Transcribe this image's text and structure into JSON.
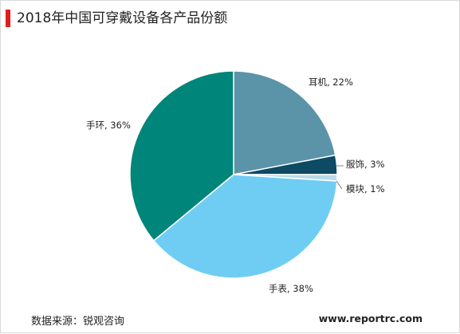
{
  "chart_data": {
    "type": "pie",
    "title": "2018年中国可穿戴设备各产品份额",
    "slices": [
      {
        "name": "耳机",
        "value": 22,
        "label": "耳机, 22%",
        "color": "#5b93a8"
      },
      {
        "name": "服饰",
        "value": 3,
        "label": "服饰, 3%",
        "color": "#0d4a63"
      },
      {
        "name": "模块",
        "value": 1,
        "label": "模块, 1%",
        "color": "#b9dbe9"
      },
      {
        "name": "手表",
        "value": 38,
        "label": "手表, 38%",
        "color": "#6fcdf3"
      },
      {
        "name": "手环",
        "value": 36,
        "label": "手环, 36%",
        "color": "#00857a"
      }
    ],
    "start_angle_deg": 0,
    "direction": "clockwise",
    "legend": "none"
  },
  "footer": {
    "source": "数据来源：锐观咨询",
    "website": "www.reportrc.com"
  },
  "colors": {
    "accent": "#e01e1e",
    "slice_border": "#ffffff"
  }
}
